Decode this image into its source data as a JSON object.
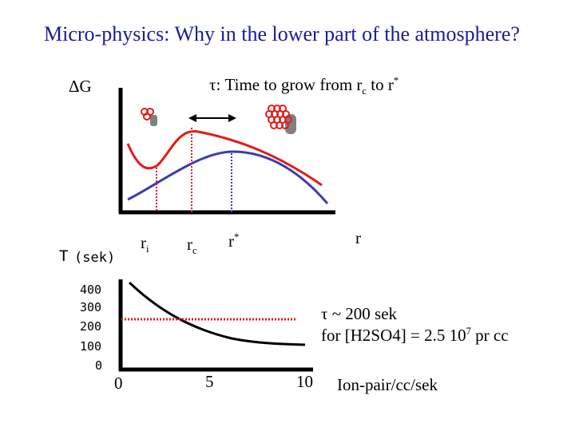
{
  "title": "Micro-physics: Why in the lower part of the atmosphere?",
  "top_diagram": {
    "y_label": "ΔG",
    "tau_caption": {
      "prefix": "τ: Time to grow from r",
      "sub_c": "c",
      "mid": " to r",
      "sup_star": "*"
    },
    "x_label": "r",
    "marks": [
      {
        "base": "r",
        "sub": "i",
        "sup": ""
      },
      {
        "base": "r",
        "sub": "c",
        "sup": ""
      },
      {
        "base": "r",
        "sub": "",
        "sup": "*"
      }
    ]
  },
  "bottom_chart": {
    "y_label": "T",
    "y_unit": "(sek)",
    "y_ticks": [
      "400",
      "300",
      "200",
      "100",
      "0"
    ],
    "x_ticks": [
      "0",
      "5",
      "10"
    ],
    "x_label": "Ion-pair/cc/sek",
    "note_line1": "τ ~ 200 sek",
    "note_line2_prefix": "for [H2SO4] = 2.5 10",
    "note_line2_exp": "7",
    "note_line2_suffix": " pr cc"
  },
  "colors": {
    "title": "#1a1aa0",
    "red": "#e41b1b",
    "blue": "#3b3bb0",
    "gray": "#808080"
  }
}
